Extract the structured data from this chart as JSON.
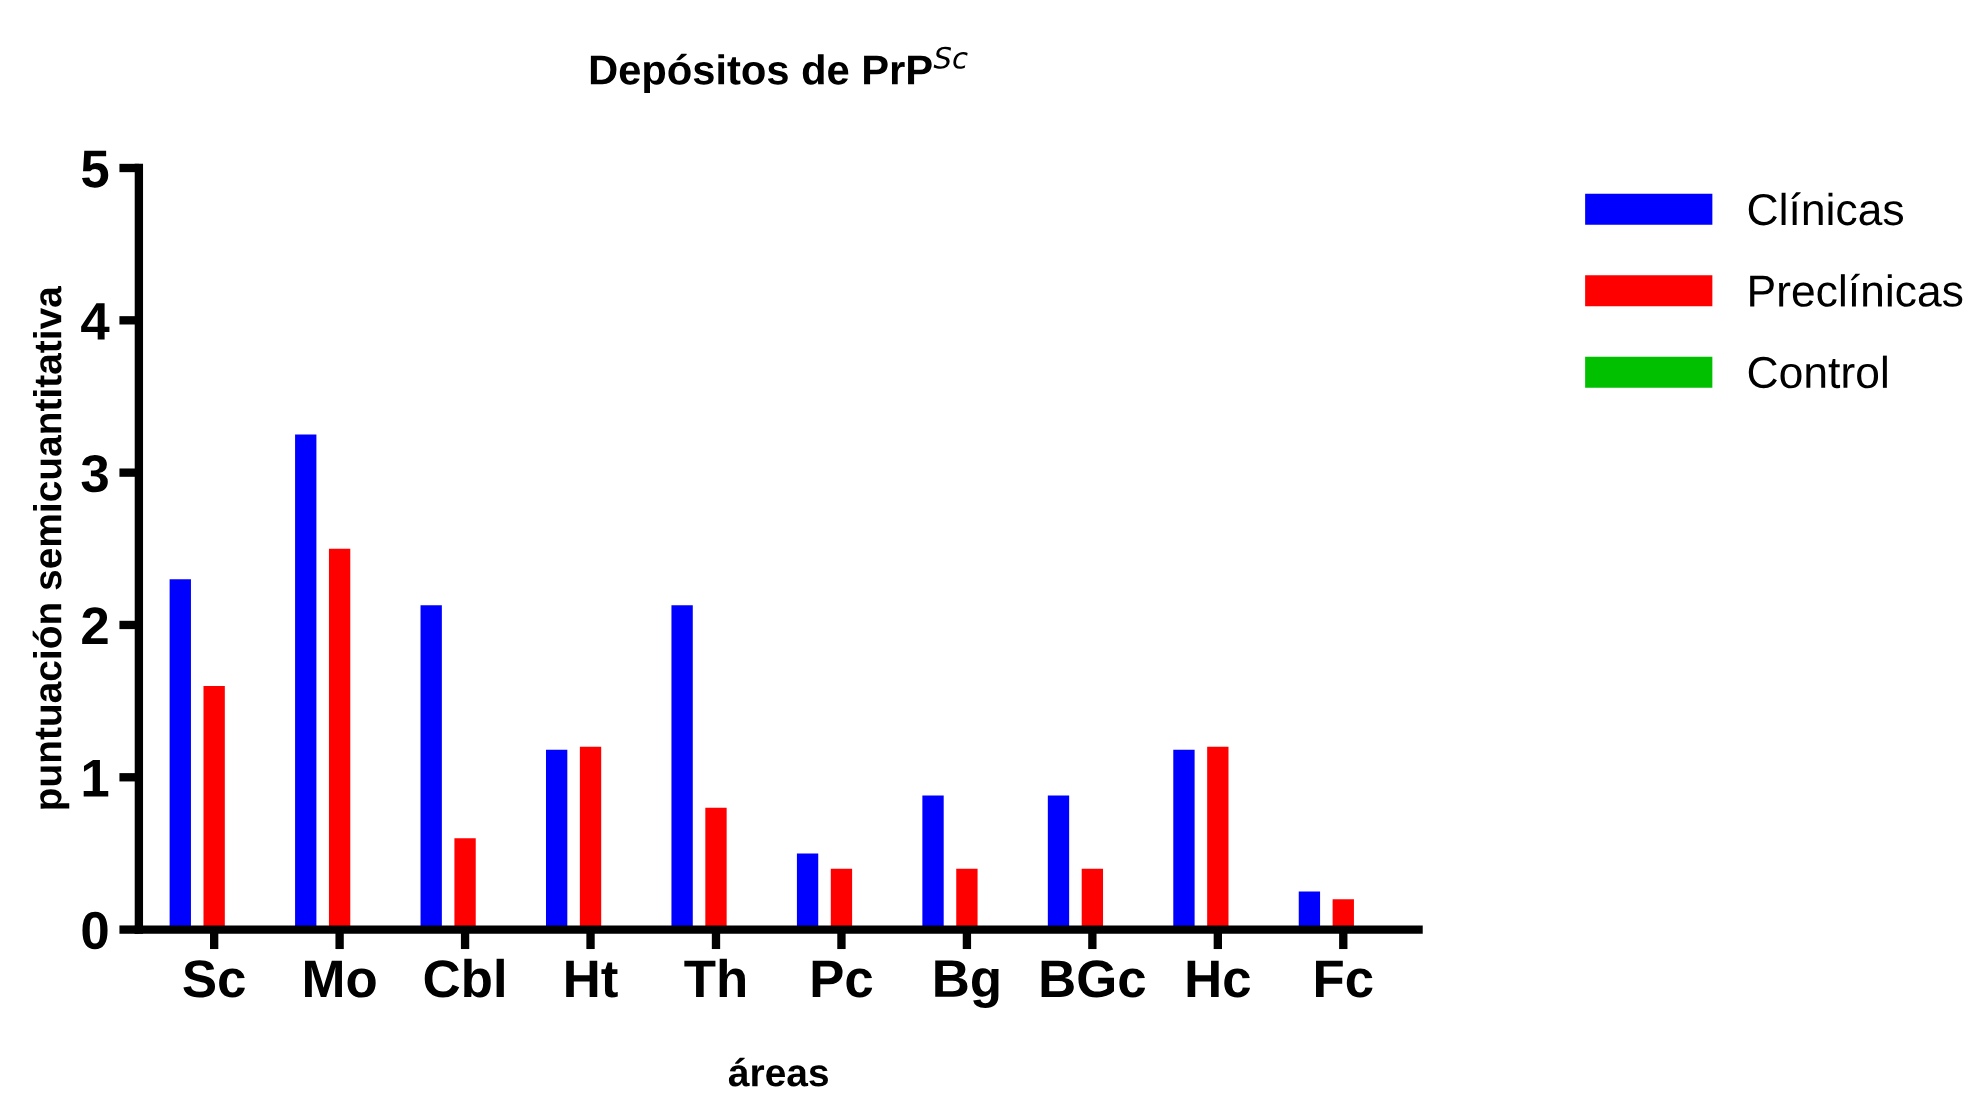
{
  "chart_data": {
    "type": "bar",
    "title": "Depósitos de PrP$^{Sc}$",
    "xlabel": "áreas",
    "ylabel": "puntuación semicuantitativa",
    "categories": [
      "Sc",
      "Mo",
      "Cbl",
      "Ht",
      "Th",
      "Pc",
      "Bg",
      "BGc",
      "Hc",
      "Fc"
    ],
    "series": [
      {
        "name": "Clínicas",
        "color": "#0000ff",
        "values": [
          2.3,
          3.25,
          2.13,
          1.18,
          2.13,
          0.5,
          0.88,
          0.88,
          1.18,
          0.25
        ]
      },
      {
        "name": "Preclínicas",
        "color": "#ff0000",
        "values": [
          1.6,
          2.5,
          0.6,
          1.2,
          0.8,
          0.4,
          0.4,
          0.4,
          1.2,
          0.2
        ]
      },
      {
        "name": "Control",
        "color": "#00c000",
        "values": [
          0,
          0,
          0,
          0,
          0,
          0,
          0,
          0,
          0,
          0
        ]
      }
    ],
    "ylim": [
      0,
      5
    ],
    "yticks": [
      0,
      1,
      2,
      3,
      4,
      5
    ],
    "grid": false,
    "legend": "right"
  }
}
